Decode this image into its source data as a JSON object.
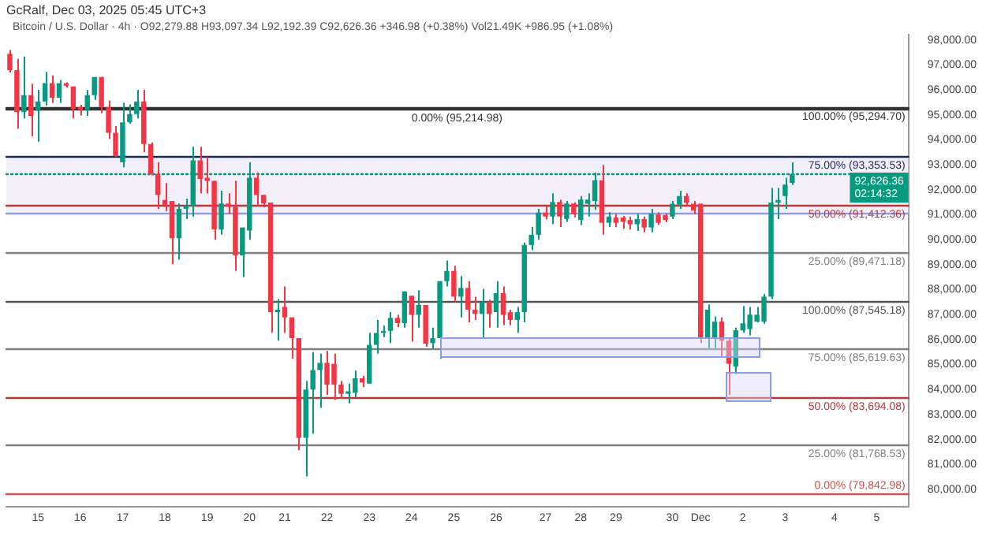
{
  "chart_data": {
    "type": "candlestick",
    "title": "GcRalf, Dec 03, 2025 05:45 UTC+3",
    "subtitle": "Bitcoin / U.S. Dollar · 4h · O92,279.88 H93,097.34 L92,192.39 C92,626.36 +346.98 (+0.38%) Vol21.49K +986.95 (+1.08%)",
    "categories": [
      null,
      null,
      null,
      null,
      "15",
      null,
      null,
      null,
      null,
      null,
      "16",
      null,
      null,
      null,
      null,
      null,
      "17",
      null,
      null,
      null,
      null,
      null,
      "18",
      null,
      null,
      null,
      null,
      null,
      "19",
      null,
      null,
      null,
      null,
      null,
      "20",
      null,
      null,
      null,
      null,
      "21",
      null,
      null,
      null,
      null,
      null,
      "22",
      null,
      null,
      null,
      null,
      null,
      "23",
      null,
      null,
      null,
      null,
      null,
      "24",
      null,
      null,
      null,
      null,
      null,
      "25",
      null,
      null,
      null,
      null,
      null,
      "26",
      null,
      null,
      null,
      null,
      null,
      null,
      "27",
      null,
      null,
      null,
      null,
      "28",
      null,
      null,
      null,
      null,
      "29",
      null,
      null,
      null,
      null,
      null,
      null,
      null,
      "30",
      null,
      null,
      null,
      "Dec",
      null,
      null,
      null,
      null,
      null,
      "2",
      null,
      null,
      null,
      null,
      null,
      "3",
      null,
      null,
      null,
      null,
      null,
      null,
      "4",
      null,
      null,
      null,
      null,
      null,
      "5",
      null,
      null,
      null,
      null
    ],
    "ohlc": [
      [
        97450,
        97600,
        96700,
        96790
      ],
      [
        96790,
        97240,
        94450,
        95110
      ],
      [
        95110,
        97340,
        94860,
        95790
      ],
      [
        95790,
        96250,
        94140,
        94960
      ],
      [
        95170,
        96000,
        93930,
        95540
      ],
      [
        95540,
        96720,
        95380,
        96270
      ],
      [
        96270,
        96580,
        95480,
        95690
      ],
      [
        95690,
        96400,
        95480,
        96270
      ],
      [
        96270,
        96300,
        96100,
        96170
      ],
      [
        96140,
        96140,
        94860,
        95230
      ],
      [
        95320,
        95400,
        94980,
        95210
      ],
      [
        95210,
        96000,
        94960,
        95790
      ],
      [
        95790,
        96520,
        95600,
        96520
      ],
      [
        96520,
        96520,
        95070,
        95320
      ],
      [
        95320,
        95580,
        94030,
        94280
      ],
      [
        94280,
        94550,
        93310,
        93350
      ],
      [
        93100,
        95480,
        92900,
        94700
      ],
      [
        94700,
        95420,
        94650,
        95030
      ],
      [
        95030,
        96000,
        94860,
        95540
      ],
      [
        95540,
        96000,
        93510,
        93830
      ],
      [
        93830,
        93900,
        92580,
        92630
      ],
      [
        92630,
        93100,
        91240,
        91800
      ],
      [
        91590,
        92270,
        91140,
        91380
      ],
      [
        91550,
        91550,
        89020,
        90060
      ],
      [
        90060,
        91450,
        89210,
        91240
      ],
      [
        91240,
        91650,
        90830,
        91380
      ],
      [
        91340,
        93720,
        90930,
        93180
      ],
      [
        93180,
        93720,
        91860,
        92440
      ],
      [
        92480,
        93310,
        91860,
        92360
      ],
      [
        92360,
        92360,
        90000,
        90410
      ],
      [
        90410,
        91960,
        90200,
        91450
      ],
      [
        91450,
        91860,
        91030,
        91320
      ],
      [
        91320,
        92360,
        88750,
        89370
      ],
      [
        89370,
        90490,
        88510,
        90490
      ],
      [
        90370,
        93100,
        90000,
        92480
      ],
      [
        92480,
        92690,
        91340,
        91800
      ],
      [
        91800,
        91800,
        91300,
        91450
      ],
      [
        91490,
        91490,
        86270,
        87100
      ],
      [
        87100,
        87620,
        85960,
        87200
      ],
      [
        87310,
        88130,
        86270,
        86890
      ],
      [
        86890,
        86890,
        85240,
        86060
      ],
      [
        86060,
        86060,
        81570,
        82070
      ],
      [
        82070,
        84350,
        80520,
        84000
      ],
      [
        84000,
        85500,
        82230,
        84780
      ],
      [
        84780,
        85440,
        83270,
        85070
      ],
      [
        85070,
        85550,
        83790,
        84200
      ],
      [
        85030,
        85440,
        83580,
        84200
      ],
      [
        84200,
        84350,
        83620,
        83830
      ],
      [
        83830,
        84240,
        83450,
        83930
      ],
      [
        83870,
        84760,
        83690,
        84450
      ],
      [
        84450,
        84550,
        84100,
        84280
      ],
      [
        84240,
        86270,
        84240,
        85790
      ],
      [
        85790,
        86790,
        85440,
        86270
      ],
      [
        86270,
        86560,
        86100,
        86350
      ],
      [
        86350,
        87100,
        85860,
        86870
      ],
      [
        86870,
        87000,
        86500,
        86660
      ],
      [
        86660,
        87930,
        86480,
        87930
      ],
      [
        87760,
        87760,
        85920,
        86990
      ],
      [
        86990,
        87970,
        86480,
        87390
      ],
      [
        87390,
        87390,
        85710,
        85840
      ],
      [
        85860,
        86480,
        85650,
        86060
      ],
      [
        86060,
        88340,
        85240,
        88340
      ],
      [
        88340,
        89170,
        88130,
        88750
      ],
      [
        88750,
        88960,
        87510,
        87720
      ],
      [
        87720,
        88550,
        86890,
        88070
      ],
      [
        88070,
        88340,
        86690,
        87200
      ],
      [
        87200,
        87720,
        86790,
        87030
      ],
      [
        87030,
        88030,
        86060,
        87510
      ],
      [
        87510,
        87600,
        86480,
        87030
      ],
      [
        87100,
        88340,
        86480,
        87860
      ],
      [
        87860,
        88130,
        86580,
        86990
      ],
      [
        87100,
        87200,
        86580,
        86790
      ],
      [
        86790,
        87310,
        86270,
        87100
      ],
      [
        87100,
        89890,
        86690,
        89790
      ],
      [
        89790,
        90510,
        89580,
        90200
      ],
      [
        90200,
        91240,
        90000,
        91090
      ],
      [
        91090,
        91340,
        90820,
        90930
      ],
      [
        90930,
        91860,
        90620,
        91510
      ],
      [
        91510,
        91600,
        90510,
        90930
      ],
      [
        90830,
        91550,
        90720,
        91450
      ],
      [
        91450,
        91500,
        90900,
        91030
      ],
      [
        90790,
        91750,
        90580,
        91610
      ],
      [
        91440,
        91860,
        90930,
        91610
      ],
      [
        91550,
        92690,
        91200,
        92380
      ],
      [
        92380,
        93000,
        90200,
        90680
      ],
      [
        90680,
        91100,
        90510,
        90930
      ],
      [
        90890,
        91030,
        90500,
        90680
      ],
      [
        90890,
        90950,
        90450,
        90720
      ],
      [
        90790,
        90930,
        90410,
        90620
      ],
      [
        90620,
        91030,
        90350,
        90830
      ],
      [
        90830,
        90930,
        90300,
        90490
      ],
      [
        90490,
        91240,
        90300,
        91030
      ],
      [
        91010,
        91100,
        90600,
        90680
      ],
      [
        90990,
        91050,
        90700,
        90790
      ],
      [
        90930,
        91550,
        90830,
        91440
      ],
      [
        91400,
        91960,
        91240,
        91750
      ],
      [
        91750,
        91860,
        91340,
        91480
      ],
      [
        91440,
        91550,
        91030,
        91170
      ],
      [
        91440,
        91440,
        85860,
        86060
      ],
      [
        86060,
        87410,
        85650,
        87200
      ],
      [
        86060,
        86930,
        85650,
        86720
      ],
      [
        86720,
        86890,
        85340,
        85960
      ],
      [
        85960,
        86060,
        83790,
        85030
      ],
      [
        84920,
        86480,
        84620,
        86370
      ],
      [
        86370,
        87350,
        86270,
        86650
      ],
      [
        86420,
        87310,
        86170,
        87000
      ],
      [
        86720,
        87310,
        86690,
        87000
      ],
      [
        86720,
        87820,
        86640,
        87720
      ],
      [
        87720,
        92070,
        87620,
        91490
      ],
      [
        91490,
        92070,
        90830,
        91590
      ],
      [
        91750,
        92480,
        91240,
        92210
      ],
      [
        92279.88,
        93097.34,
        92192.39,
        92626.36
      ],
      null,
      null,
      null,
      null,
      null,
      null,
      null,
      null,
      null,
      null,
      null,
      null,
      null,
      null,
      null,
      null
    ],
    "colors": [
      "#f23645",
      "#f23645",
      "#089981",
      "#f23645",
      "#089981",
      "#089981",
      "#f23645",
      "#089981",
      "#f23645",
      "#f23645",
      "#f23645",
      "#089981",
      "#089981",
      "#f23645",
      "#f23645",
      "#f23645",
      "#089981",
      "#089981",
      "#089981",
      "#f23645",
      "#f23645",
      "#f23645",
      "#f23645",
      "#f23645",
      "#089981",
      "#089981",
      "#089981",
      "#f23645",
      "#f23645",
      "#f23645",
      "#089981",
      "#f23645",
      "#f23645",
      "#089981",
      "#089981",
      "#f23645",
      "#f23645",
      "#f23645",
      "#089981",
      "#f23645",
      "#f23645",
      "#f23645",
      "#089981",
      "#089981",
      "#089981",
      "#f23645",
      "#f23645",
      "#f23645",
      "#089981",
      "#089981",
      "#f23645",
      "#089981",
      "#089981",
      "#089981",
      "#089981",
      "#f23645",
      "#089981",
      "#f23645",
      "#089981",
      "#f23645",
      "#089981",
      "#089981",
      "#089981",
      "#f23645",
      "#089981",
      "#f23645",
      "#f23645",
      "#089981",
      "#f23645",
      "#089981",
      "#f23645",
      "#f23645",
      "#089981",
      "#089981",
      "#089981",
      "#089981",
      "#f23645",
      "#089981",
      "#f23645",
      "#089981",
      "#f23645",
      "#089981",
      "#089981",
      "#089981",
      "#f23645",
      "#089981",
      "#f23645",
      "#f23645",
      "#f23645",
      "#089981",
      "#f23645",
      "#089981",
      "#f23645",
      "#f23645",
      "#089981",
      "#089981",
      "#f23645",
      "#f23645",
      "#f23645",
      "#089981",
      "#089981",
      "#f23645",
      "#f23645",
      "#089981",
      "#089981",
      "#089981",
      "#089981",
      "#089981",
      "#089981",
      "#089981",
      "#089981",
      "#089981",
      null,
      null,
      null,
      null,
      null,
      null,
      null,
      null,
      null,
      null,
      null,
      null,
      null,
      null,
      null,
      null
    ],
    "ylim": [
      79300,
      98200
    ],
    "yticks": [
      {
        "value": 80000,
        "label": "80,000.00"
      },
      {
        "value": 81000,
        "label": "81,000.00"
      },
      {
        "value": 82000,
        "label": "82,000.00"
      },
      {
        "value": 83000,
        "label": "83,000.00"
      },
      {
        "value": 84000,
        "label": "84,000.00"
      },
      {
        "value": 85000,
        "label": "85,000.00"
      },
      {
        "value": 86000,
        "label": "86,000.00"
      },
      {
        "value": 87000,
        "label": "87,000.00"
      },
      {
        "value": 88000,
        "label": "88,000.00"
      },
      {
        "value": 89000,
        "label": "89,000.00"
      },
      {
        "value": 90000,
        "label": "90,000.00"
      },
      {
        "value": 91000,
        "label": "91,000.00"
      },
      {
        "value": 92000,
        "label": "92,000.00"
      },
      {
        "value": 93000,
        "label": "93,000.00"
      },
      {
        "value": 94000,
        "label": "94,000.00"
      },
      {
        "value": 95000,
        "label": "95,000.00"
      },
      {
        "value": 96000,
        "label": "96,000.00"
      },
      {
        "value": 97000,
        "label": "97,000.00"
      },
      {
        "value": 98000,
        "label": "98,000.00"
      }
    ],
    "bands": [
      {
        "axis": "y",
        "from": 91100,
        "to": 93353.53,
        "color": "#ede9f7"
      }
    ],
    "ref_lines": [
      {
        "axis": "y",
        "value": 95294.7,
        "label": "100.00% (95,294.70)",
        "color": "#333333"
      },
      {
        "axis": "y",
        "value": 95214.98,
        "label": "0.00% (95,214.98)",
        "color": "#333333"
      },
      {
        "axis": "y",
        "value": 93353.53,
        "label": "75.00% (93,353.53)",
        "color": "#1a2a5e"
      },
      {
        "axis": "y",
        "value": 91412.36,
        "label": "50.00% (91,412.36)",
        "color": "#b33a3a"
      },
      {
        "axis": "y",
        "value": 91100,
        "color": "#8c9ee0"
      },
      {
        "axis": "y",
        "value": 89471.18,
        "label": "25.00% (89,471.18)",
        "color": "#808080"
      },
      {
        "axis": "y",
        "value": 87545.18,
        "label": "100.00% (87,545.18)",
        "color": "#555555"
      },
      {
        "axis": "y",
        "value": 85619.63,
        "label": "75.00% (85,619.63)",
        "color": "#808080"
      },
      {
        "axis": "y",
        "value": 83694.08,
        "label": "50.00% (83,694.08)",
        "color": "#b33a3a"
      },
      {
        "axis": "y",
        "value": 81768.53,
        "label": "25.00% (81,768.53)",
        "color": "#808080"
      },
      {
        "axis": "y",
        "value": 79842.98,
        "label": "0.00% (79,842.98)",
        "color": "#d05050"
      },
      {
        "axis": "y",
        "value": 92626.36,
        "label": "92,626.36",
        "color": "#089981",
        "line_style": "dotted"
      }
    ],
    "annotations": [
      "02:14:32"
    ],
    "legend": false
  }
}
